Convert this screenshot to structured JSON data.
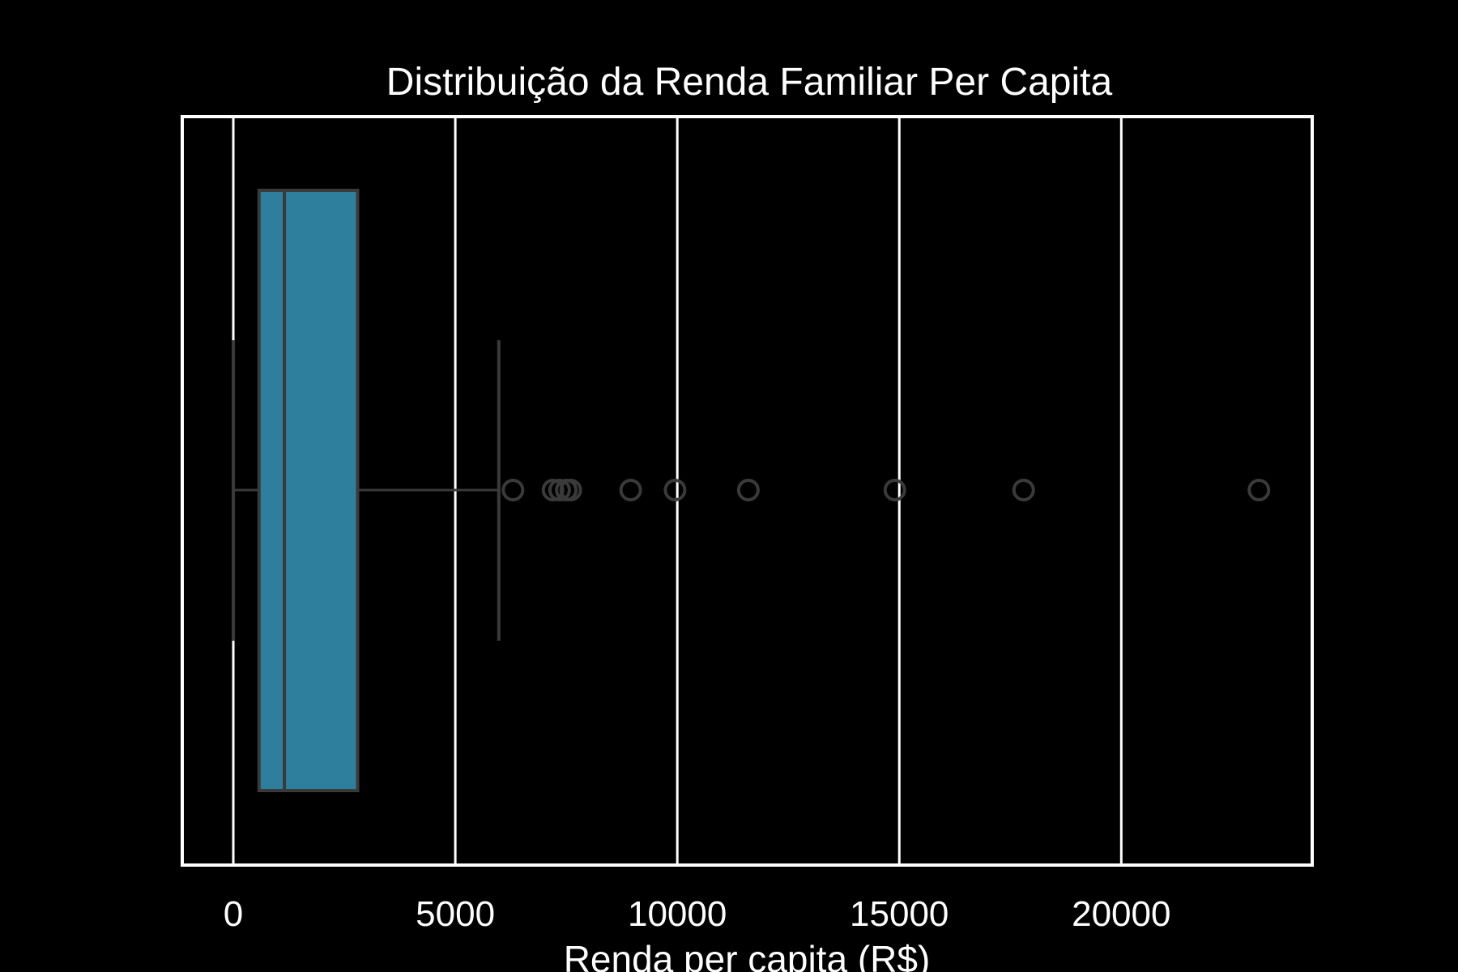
{
  "chart_data": {
    "type": "boxplot",
    "orientation": "horizontal",
    "title": "Distribuição da Renda Familiar Per Capita",
    "xlabel": "Renda per capita (R$)",
    "ylabel": "",
    "xlim": [
      -1150,
      24300
    ],
    "xticks": [
      0,
      5000,
      10000,
      15000,
      20000
    ],
    "xtick_labels": [
      "0",
      "5000",
      "10000",
      "15000",
      "20000"
    ],
    "grid": {
      "x": true,
      "y": false
    },
    "box": {
      "whisker_low": 0,
      "q1": 580,
      "median": 1150,
      "q3": 2800,
      "whisker_high": 5980
    },
    "outliers": [
      6300,
      7200,
      7350,
      7500,
      7600,
      8950,
      9950,
      11600,
      14900,
      17800,
      23100
    ]
  },
  "colors": {
    "background": "#000000",
    "box_fill": "#2e7f9e",
    "box_edge": "#3a3a3a",
    "grid": "#ffffff",
    "text": "#ffffff"
  }
}
